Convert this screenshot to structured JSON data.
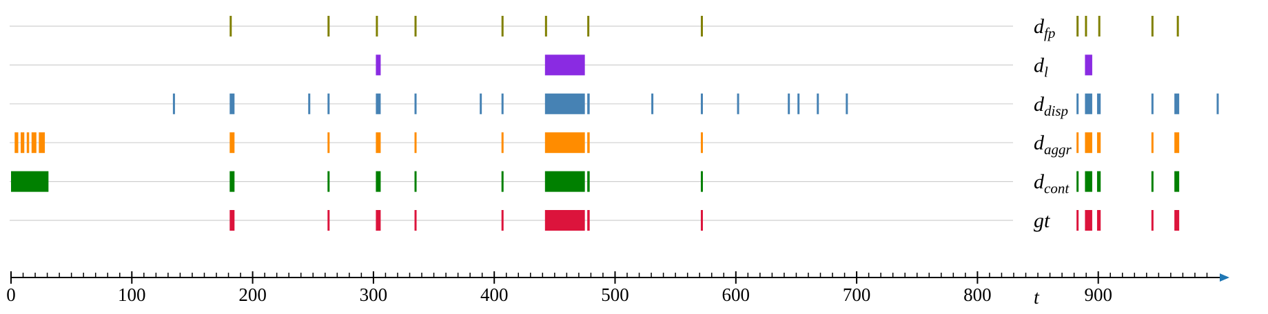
{
  "chart_data": {
    "type": "event-timeline",
    "x_axis": {
      "label": "t",
      "range": [
        0,
        1000
      ],
      "tick_labels": [
        "0",
        "100",
        "200",
        "300",
        "400",
        "500",
        "600",
        "700",
        "800",
        "900"
      ],
      "tick_values": [
        0,
        100,
        200,
        300,
        400,
        500,
        600,
        700,
        800,
        900
      ],
      "minor_tick_step": 10
    },
    "gridlines": true,
    "rows": [
      {
        "key": "dfp",
        "base": "d",
        "sub": "fp",
        "color": "#808000",
        "events": [
          [
            181,
            182
          ],
          [
            262,
            263
          ],
          [
            302,
            303
          ],
          [
            334,
            335
          ],
          [
            406,
            407
          ],
          [
            442,
            443
          ],
          [
            477,
            478
          ],
          [
            571,
            572
          ],
          [
            882,
            883
          ],
          [
            889,
            890
          ],
          [
            900,
            901
          ],
          [
            944,
            945
          ],
          [
            965,
            966
          ]
        ]
      },
      {
        "key": "dl",
        "base": "d",
        "sub": "l",
        "color": "#8a2be2",
        "events": [
          [
            302,
            306
          ],
          [
            442,
            475
          ],
          [
            889,
            895
          ]
        ]
      },
      {
        "key": "ddisp",
        "base": "d",
        "sub": "disp",
        "color": "#4682b4",
        "events": [
          [
            134,
            135
          ],
          [
            181,
            185
          ],
          [
            246,
            247
          ],
          [
            262,
            263
          ],
          [
            302,
            306
          ],
          [
            334,
            335
          ],
          [
            388,
            389
          ],
          [
            406,
            407
          ],
          [
            442,
            475
          ],
          [
            477,
            479
          ],
          [
            530,
            531
          ],
          [
            571,
            572
          ],
          [
            601,
            602
          ],
          [
            643,
            644
          ],
          [
            651,
            652
          ],
          [
            667,
            668
          ],
          [
            691,
            692
          ],
          [
            882,
            883
          ],
          [
            889,
            895
          ],
          [
            899,
            902
          ],
          [
            944,
            945
          ],
          [
            963,
            967
          ],
          [
            998,
            999
          ]
        ]
      },
      {
        "key": "daggr",
        "base": "d",
        "sub": "aggr",
        "color": "#ff8c00",
        "events": [
          [
            3,
            6
          ],
          [
            8,
            11
          ],
          [
            13,
            15
          ],
          [
            17,
            21
          ],
          [
            23,
            28
          ],
          [
            181,
            185
          ],
          [
            262,
            263
          ],
          [
            302,
            306
          ],
          [
            334,
            335
          ],
          [
            406,
            407
          ],
          [
            442,
            475
          ],
          [
            477,
            479
          ],
          [
            571,
            572
          ],
          [
            882,
            883
          ],
          [
            889,
            895
          ],
          [
            899,
            902
          ],
          [
            944,
            945
          ],
          [
            963,
            967
          ]
        ]
      },
      {
        "key": "dcont",
        "base": "d",
        "sub": "cont",
        "color": "#008000",
        "events": [
          [
            0,
            31
          ],
          [
            181,
            185
          ],
          [
            262,
            263
          ],
          [
            302,
            306
          ],
          [
            334,
            335
          ],
          [
            406,
            407
          ],
          [
            442,
            475
          ],
          [
            477,
            479
          ],
          [
            571,
            572
          ],
          [
            882,
            883
          ],
          [
            889,
            895
          ],
          [
            899,
            902
          ],
          [
            944,
            945
          ],
          [
            963,
            967
          ]
        ]
      },
      {
        "key": "gt",
        "base": "gt",
        "sub": "",
        "color": "#dc143c",
        "events": [
          [
            181,
            185
          ],
          [
            262,
            263
          ],
          [
            302,
            306
          ],
          [
            334,
            335
          ],
          [
            406,
            407
          ],
          [
            442,
            475
          ],
          [
            477,
            479
          ],
          [
            571,
            572
          ],
          [
            882,
            883
          ],
          [
            889,
            895
          ],
          [
            899,
            902
          ],
          [
            944,
            945
          ],
          [
            963,
            967
          ]
        ]
      }
    ]
  }
}
